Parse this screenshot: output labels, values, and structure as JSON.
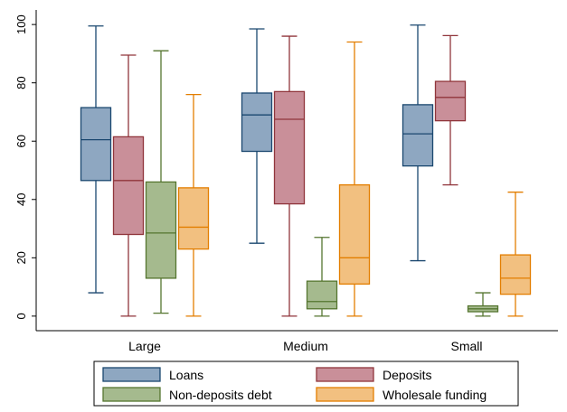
{
  "chart_data": {
    "type": "box",
    "categories": [
      "Large",
      "Medium",
      "Small"
    ],
    "ylim": [
      -5,
      105
    ],
    "yticks": [
      0,
      20,
      40,
      60,
      80,
      100
    ],
    "grid": false,
    "legend_position": "bottom",
    "series": [
      {
        "name": "Loans",
        "fill": "#8ea7c1",
        "stroke": "#1a476f",
        "boxes": [
          {
            "category": "Large",
            "min": 8,
            "q1": 46.5,
            "median": 60.5,
            "q3": 71.5,
            "max": 99.5
          },
          {
            "category": "Medium",
            "min": 25,
            "q1": 56.5,
            "median": 69,
            "q3": 76.5,
            "max": 98.5
          },
          {
            "category": "Small",
            "min": 19,
            "q1": 51.5,
            "median": 62.5,
            "q3": 72.5,
            "max": 99.8
          }
        ]
      },
      {
        "name": "Deposits",
        "fill": "#c98f99",
        "stroke": "#90353b",
        "boxes": [
          {
            "category": "Large",
            "min": 0,
            "q1": 28,
            "median": 46.5,
            "q3": 61.5,
            "max": 89.5
          },
          {
            "category": "Medium",
            "min": 0,
            "q1": 38.5,
            "median": 67.5,
            "q3": 77,
            "max": 96
          },
          {
            "category": "Small",
            "min": 45,
            "q1": 67,
            "median": 75,
            "q3": 80.5,
            "max": 96.2
          }
        ]
      },
      {
        "name": "Non-deposits debt",
        "fill": "#a5ba8e",
        "stroke": "#55752f",
        "boxes": [
          {
            "category": "Large",
            "min": 1,
            "q1": 13,
            "median": 28.5,
            "q3": 46,
            "max": 91
          },
          {
            "category": "Medium",
            "min": 0,
            "q1": 2.5,
            "median": 5,
            "q3": 12,
            "max": 27
          },
          {
            "category": "Small",
            "min": 0,
            "q1": 1.5,
            "median": 2.5,
            "q3": 3.5,
            "max": 8
          }
        ]
      },
      {
        "name": "Wholesale funding",
        "fill": "#f2c080",
        "stroke": "#e37e00",
        "boxes": [
          {
            "category": "Large",
            "min": 0,
            "q1": 23,
            "median": 30.5,
            "q3": 44,
            "max": 76
          },
          {
            "category": "Medium",
            "min": 0,
            "q1": 11,
            "median": 20,
            "q3": 45,
            "max": 94
          },
          {
            "category": "Small",
            "min": 0,
            "q1": 7.5,
            "median": 13,
            "q3": 21,
            "max": 42.5
          }
        ]
      }
    ]
  }
}
